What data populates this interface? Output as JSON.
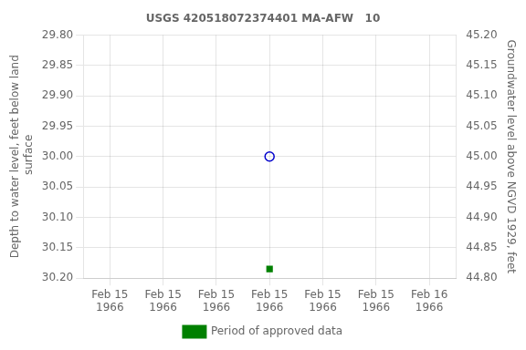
{
  "chart_data": {
    "type": "scatter",
    "title": "USGS 420518072374401 MA-AFW   10",
    "ylabel": "Depth to water level, feet below land\n surface",
    "y2label": "Groundwater level above NGVD 1929, feet",
    "categories": [
      "Feb 15\n1966",
      "Feb 15\n1966",
      "Feb 15\n1966",
      "Feb 15\n1966",
      "Feb 15\n1966",
      "Feb 15\n1966",
      "Feb 16\n1966"
    ],
    "series": [
      {
        "color": "#0000cc",
        "marker": "circle",
        "values": [
          null,
          null,
          null,
          30.0,
          null,
          null,
          null
        ]
      },
      {
        "name": "Period of approved data",
        "color": "#008000",
        "marker": "square",
        "values": [
          null,
          null,
          null,
          30.185,
          null,
          null,
          null
        ]
      }
    ],
    "ylim": [
      30.2,
      29.8
    ],
    "yticks": [
      {
        "value": 29.8,
        "label": "29.80"
      },
      {
        "value": 29.85,
        "label": "29.85"
      },
      {
        "value": 29.9,
        "label": "29.90"
      },
      {
        "value": 29.95,
        "label": "29.95"
      },
      {
        "value": 30.0,
        "label": "30.00"
      },
      {
        "value": 30.05,
        "label": "30.05"
      },
      {
        "value": 30.1,
        "label": "30.10"
      },
      {
        "value": 30.15,
        "label": "30.15"
      },
      {
        "value": 30.2,
        "label": "30.20"
      }
    ],
    "y2lim": [
      44.8,
      45.2
    ],
    "y2ticks": [
      {
        "value": 45.2,
        "label": "45.20"
      },
      {
        "value": 45.15,
        "label": "45.15"
      },
      {
        "value": 45.1,
        "label": "45.10"
      },
      {
        "value": 45.05,
        "label": "45.05"
      },
      {
        "value": 45.0,
        "label": "45.00"
      },
      {
        "value": 44.95,
        "label": "44.95"
      },
      {
        "value": 44.9,
        "label": "44.90"
      },
      {
        "value": 44.85,
        "label": "44.85"
      },
      {
        "value": 44.8,
        "label": "44.80"
      }
    ],
    "grid": true,
    "legend": "bottom"
  }
}
